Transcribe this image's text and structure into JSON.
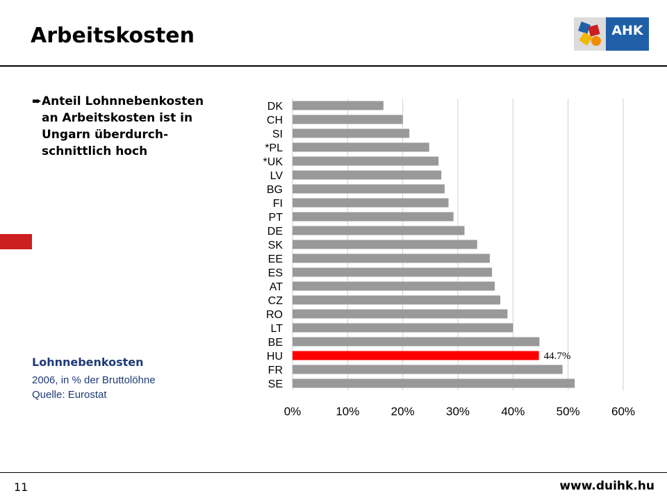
{
  "slide": {
    "title": "Arbeitskosten",
    "bullet": {
      "arrow": "➨",
      "lines": [
        "Anteil Lohnnebenkosten",
        "an Arbeitskosten ist in",
        "Ungarn überdurch-",
        "schnittlich hoch"
      ]
    },
    "legend": {
      "title": "Lohnnebenkosten",
      "subtitle": "2006, in % der Bruttolöhne",
      "source": "Quelle: Eurostat"
    },
    "logo_text": "AHK",
    "page_number": "11",
    "footer_url": "www.duihk.hu"
  },
  "colors": {
    "bar_default": "#999999",
    "bar_highlight": "#ff0000",
    "marker_red": "#cc1f1f",
    "legend_blue": "#1f3a78",
    "logo_blue": "#1f5fa8"
  },
  "chart_data": {
    "type": "bar",
    "orientation": "horizontal",
    "categories": [
      "DK",
      "CH",
      "SI",
      "*PL",
      "*UK",
      "LV",
      "BG",
      "FI",
      "PT",
      "DE",
      "SK",
      "EE",
      "ES",
      "AT",
      "CZ",
      "RO",
      "LT",
      "BE",
      "HU",
      "FR",
      "SE"
    ],
    "values": [
      16.5,
      20.0,
      21.2,
      24.8,
      26.5,
      27.0,
      27.6,
      28.3,
      29.2,
      31.2,
      33.5,
      35.8,
      36.2,
      36.7,
      37.7,
      39.0,
      40.0,
      44.8,
      44.7,
      49.0,
      51.2
    ],
    "highlight": "HU",
    "data_label": "44.7%",
    "xlim": [
      0,
      60
    ],
    "xticks": [
      "0%",
      "10%",
      "20%",
      "30%",
      "40%",
      "50%",
      "60%"
    ],
    "grid": true
  }
}
